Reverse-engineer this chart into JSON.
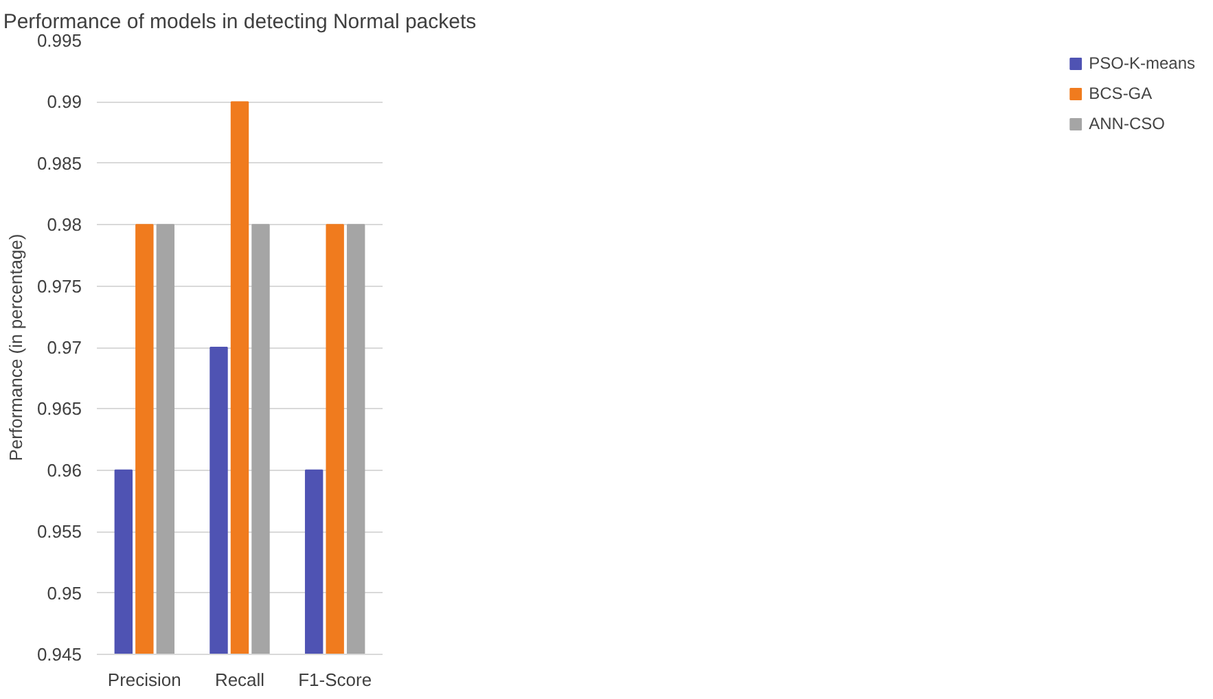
{
  "chart_data": {
    "type": "bar",
    "title": "Performance of models in detecting Normal packets",
    "ylabel": "Performance (in percentage)",
    "categories": [
      "Precision",
      "Recall",
      "F1-Score"
    ],
    "series": [
      {
        "name": "PSO-K-means",
        "color": "#4f53b3",
        "values": [
          0.96,
          0.97,
          0.96
        ]
      },
      {
        "name": "BCS-GA",
        "color": "#f07b1e",
        "values": [
          0.98,
          0.99,
          0.98
        ]
      },
      {
        "name": "ANN-CSO",
        "color": "#a5a5a5",
        "values": [
          0.98,
          0.98,
          0.98
        ]
      }
    ],
    "ylim": [
      0.945,
      0.995
    ],
    "yticks": [
      0.945,
      0.95,
      0.955,
      0.96,
      0.965,
      0.97,
      0.975,
      0.98,
      0.985,
      0.99,
      0.995
    ],
    "grid": "y",
    "legend": "right"
  }
}
